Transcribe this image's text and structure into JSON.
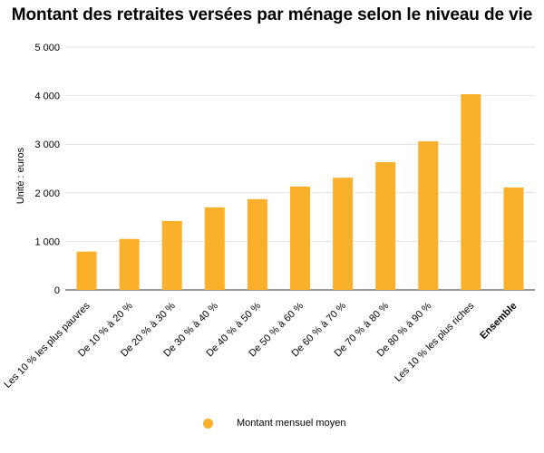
{
  "chart_data": {
    "type": "bar",
    "title": "Montant des retraites versées par ménage selon le niveau de vie",
    "ylabel": "Unité : euros",
    "xlabel": "",
    "ylim": [
      0,
      5000
    ],
    "yticks": [
      0,
      1000,
      2000,
      3000,
      4000,
      5000
    ],
    "ytick_labels": [
      "0",
      "1 000",
      "2 000",
      "3 000",
      "4 000",
      "5 000"
    ],
    "grid": true,
    "legend_position": "bottom",
    "categories": [
      "Les 10 % les plus pauvres",
      "De 10 % à 20 %",
      "De 20 % à 30 %",
      "De 30 % à 40 %",
      "De 40 % à 50 %",
      "De 50 % à 60 %",
      "De 60 % à 70 %",
      "De 70 % à 80 %",
      "De 80 % à 90 %",
      "Les 10 % les plus riches",
      "Ensemble"
    ],
    "bold_categories": [
      "Ensemble"
    ],
    "series": [
      {
        "name": "Montant mensuel moyen",
        "color": "#fbb02b",
        "values": [
          790,
          1050,
          1420,
          1700,
          1870,
          2130,
          2310,
          2630,
          3060,
          4030,
          2110
        ]
      }
    ]
  }
}
